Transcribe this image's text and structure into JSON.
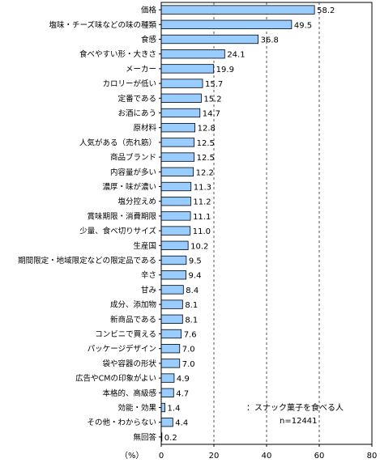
{
  "chart_data": {
    "type": "bar",
    "orientation": "horizontal",
    "categories": [
      "価格",
      "塩味・チーズ味などの味の種類",
      "食感",
      "食べやすい形・大きさ",
      "メーカー",
      "カロリーが低い",
      "定番である",
      "お酒にあう",
      "原材料",
      "人気がある（売れ筋）",
      "商品ブランド",
      "内容量が多い",
      "濃厚・味が濃い",
      "塩分控えめ",
      "賞味期限・消費期限",
      "少量、食べ切りサイズ",
      "生産国",
      "期間限定・地域限定などの限定品である",
      "辛さ",
      "甘み",
      "成分、添加物",
      "新商品である",
      "コンビニで買える",
      "パッケージデザイン",
      "袋や容器の形状",
      "広告やCMの印象がよい",
      "本格的、高級感",
      "効能・効果",
      "その他・わからない",
      "無回答"
    ],
    "values": [
      58.2,
      49.5,
      36.8,
      24.1,
      19.9,
      15.7,
      15.2,
      14.7,
      12.8,
      12.5,
      12.5,
      12.2,
      11.3,
      11.2,
      11.1,
      11.0,
      10.2,
      9.5,
      9.4,
      8.4,
      8.1,
      8.1,
      7.6,
      7.0,
      7.0,
      4.9,
      4.7,
      1.4,
      4.4,
      0.2
    ],
    "value_labels": [
      "58.2",
      "49.5",
      "36.8",
      "24.1",
      "19.9",
      "15.7",
      "15.2",
      "14.7",
      "12.8",
      "12.5",
      "12.5",
      "12.2",
      "11.3",
      "11.2",
      "11.1",
      "11.0",
      "10.2",
      "9.5",
      "9.4",
      "8.4",
      "8.1",
      "8.1",
      "7.6",
      "7.0",
      "7.0",
      "4.9",
      "4.7",
      "1.4",
      "4.4",
      "0.2"
    ],
    "xlim": [
      0,
      80
    ],
    "xticks": [
      0,
      20,
      40,
      60,
      80
    ],
    "xlabel": "（%）",
    "ylabel": "",
    "title": "",
    "grid": "vertical dashed at 20, 40, 60",
    "bar_color": "#99ccff",
    "bar_stroke": "#000000",
    "legend": {
      "line1": "：スナック菓子を食べる人",
      "line2": "n=12441"
    }
  }
}
